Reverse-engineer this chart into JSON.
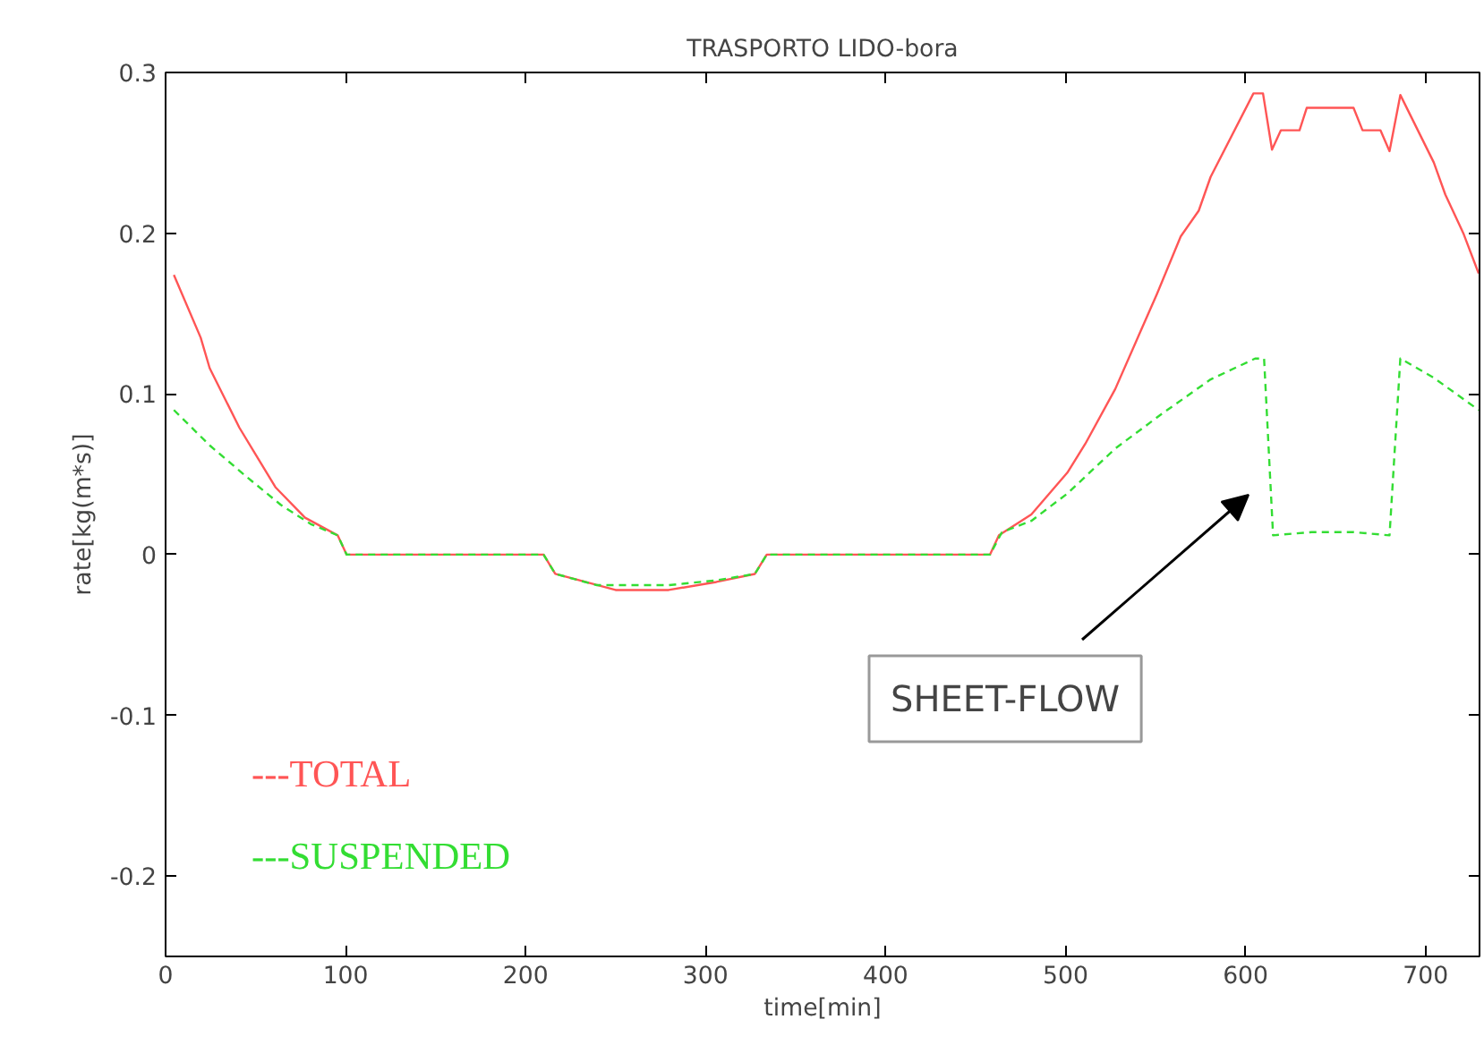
{
  "chart_data": {
    "type": "line",
    "title": "TRASPORTO LIDO-bora",
    "xlabel": "time[min]",
    "ylabel": "rate[kg(m*s)]",
    "xlim": [
      0,
      730
    ],
    "xticks": [
      0,
      100,
      200,
      300,
      400,
      500,
      600,
      700
    ],
    "ylim": [
      -0.25,
      0.3
    ],
    "yticks": [
      -0.2,
      -0.1,
      0,
      0.1,
      0.2,
      0.3
    ],
    "grid": false,
    "legend": "bottom left",
    "annotations": [
      "SHEET-FLOW"
    ],
    "series": [
      {
        "name": "---TOTAL",
        "color": "#ff5555",
        "line_style": "solid",
        "x": [
          4.6,
          19.5,
          24.5,
          41,
          61,
          77.5,
          95.6,
          100.6,
          210,
          216.5,
          250,
          279.5,
          306,
          327.4,
          334,
          458,
          463,
          481,
          501,
          511,
          527.6,
          550.7,
          564,
          574,
          580.6,
          604.4,
          609.7,
          614.7,
          619.6,
          630,
          634,
          660,
          665,
          675,
          680,
          686,
          704.6,
          711,
          721,
          729.5
        ],
        "values": [
          0.174,
          0.135,
          0.116,
          0.079,
          0.042,
          0.023,
          0.012,
          0,
          0,
          -0.012,
          -0.022,
          -0.022,
          -0.017,
          -0.012,
          0,
          0,
          0.012,
          0.025,
          0.051,
          0.069,
          0.103,
          0.162,
          0.198,
          0.214,
          0.235,
          0.287,
          0.287,
          0.252,
          0.264,
          0.264,
          0.278,
          0.278,
          0.264,
          0.264,
          0.251,
          0.286,
          0.244,
          0.224,
          0.2,
          0.175
        ]
      },
      {
        "name": "---SUSPENDED",
        "color": "#33dd33",
        "line_style": "dashed",
        "x": [
          4.6,
          24.5,
          44.4,
          64,
          80.7,
          95.6,
          100.6,
          210,
          216.5,
          239.6,
          279.5,
          306,
          327.4,
          334,
          458,
          464.7,
          481,
          501,
          527.6,
          554,
          580.6,
          605.3,
          610.3,
          615.3,
          636.8,
          660,
          680,
          686,
          704.6,
          729.5
        ],
        "values": [
          0.09,
          0.068,
          0.049,
          0.031,
          0.019,
          0.012,
          0,
          0,
          -0.012,
          -0.019,
          -0.019,
          -0.016,
          -0.012,
          0,
          0,
          0.014,
          0.021,
          0.038,
          0.066,
          0.088,
          0.109,
          0.122,
          0.122,
          0.012,
          0.014,
          0.014,
          0.012,
          0.122,
          0.11,
          0.09
        ]
      }
    ]
  }
}
